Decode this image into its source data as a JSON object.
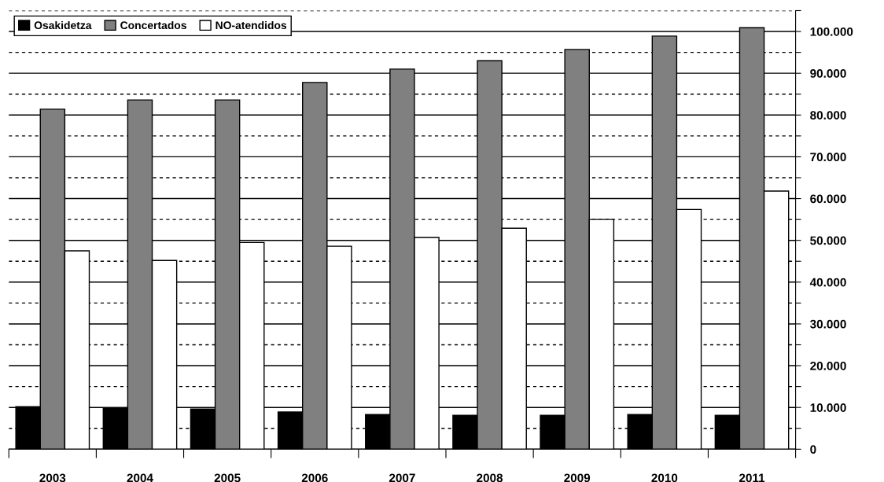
{
  "chart_data": {
    "type": "bar",
    "categories": [
      "2003",
      "2004",
      "2005",
      "2006",
      "2007",
      "2008",
      "2009",
      "2010",
      "2011"
    ],
    "series": [
      {
        "name": "Osakidetza",
        "color": "#000000",
        "values": [
          10200,
          9800,
          9600,
          8900,
          8300,
          8100,
          8100,
          8300,
          8100
        ]
      },
      {
        "name": "Concertados",
        "color": "#808080",
        "values": [
          81400,
          83600,
          83600,
          87800,
          91000,
          93000,
          95700,
          98900,
          100900
        ]
      },
      {
        "name": "NO-atendidos",
        "color": "#ffffff",
        "values": [
          47500,
          45200,
          49500,
          48600,
          50700,
          52900,
          55000,
          57400,
          61800
        ]
      }
    ],
    "ylim": [
      0,
      105000
    ],
    "yticks": [
      {
        "value": 0,
        "label": "0"
      },
      {
        "value": 5000,
        "label": null
      },
      {
        "value": 10000,
        "label": "10.000"
      },
      {
        "value": 15000,
        "label": null
      },
      {
        "value": 20000,
        "label": "20.000"
      },
      {
        "value": 25000,
        "label": null
      },
      {
        "value": 30000,
        "label": "30.000"
      },
      {
        "value": 35000,
        "label": null
      },
      {
        "value": 40000,
        "label": "40.000"
      },
      {
        "value": 45000,
        "label": null
      },
      {
        "value": 50000,
        "label": "50.000"
      },
      {
        "value": 55000,
        "label": null
      },
      {
        "value": 60000,
        "label": "60.000"
      },
      {
        "value": 65000,
        "label": null
      },
      {
        "value": 70000,
        "label": "70.000"
      },
      {
        "value": 75000,
        "label": null
      },
      {
        "value": 80000,
        "label": "80.000"
      },
      {
        "value": 85000,
        "label": null
      },
      {
        "value": 90000,
        "label": "90.000"
      },
      {
        "value": 95000,
        "label": null
      },
      {
        "value": 100000,
        "label": "100.000"
      },
      {
        "value": 105000,
        "label": null
      }
    ],
    "grid": "y",
    "legend": "top left"
  }
}
